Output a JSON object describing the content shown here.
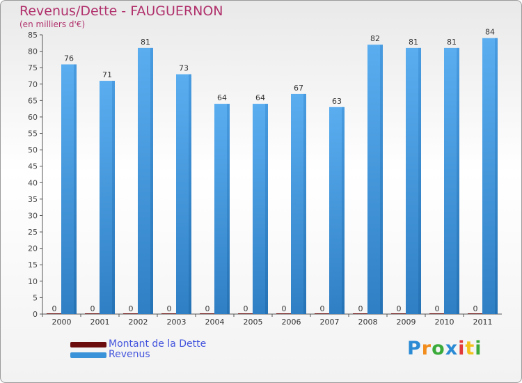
{
  "chart_data": {
    "type": "bar",
    "title": "Revenus/Dette - FAUGUERNON",
    "subtitle": "(en milliers d'€)",
    "categories": [
      "2000",
      "2001",
      "2002",
      "2003",
      "2004",
      "2005",
      "2006",
      "2007",
      "2008",
      "2009",
      "2010",
      "2011"
    ],
    "series": [
      {
        "name": "Montant de la Dette",
        "color": "#6b0d0d",
        "values": [
          0,
          0,
          0,
          0,
          0,
          0,
          0,
          0,
          0,
          0,
          0,
          0
        ]
      },
      {
        "name": "Revenus",
        "color": "#3a93d8",
        "values": [
          76,
          71,
          81,
          73,
          64,
          64,
          67,
          63,
          82,
          81,
          81,
          84
        ]
      }
    ],
    "ylim": [
      0,
      85
    ],
    "ytick_step": 5,
    "grid": false,
    "legend": "bottom-left"
  },
  "logo": {
    "letters": [
      "P",
      "r",
      "o",
      "x",
      "i",
      "t",
      "i"
    ],
    "colors": [
      "#2a8ad4",
      "#f28c1c",
      "#3aab3a",
      "#2a8ad4",
      "#e23a3a",
      "#f2c21c",
      "#3aab3a"
    ]
  }
}
